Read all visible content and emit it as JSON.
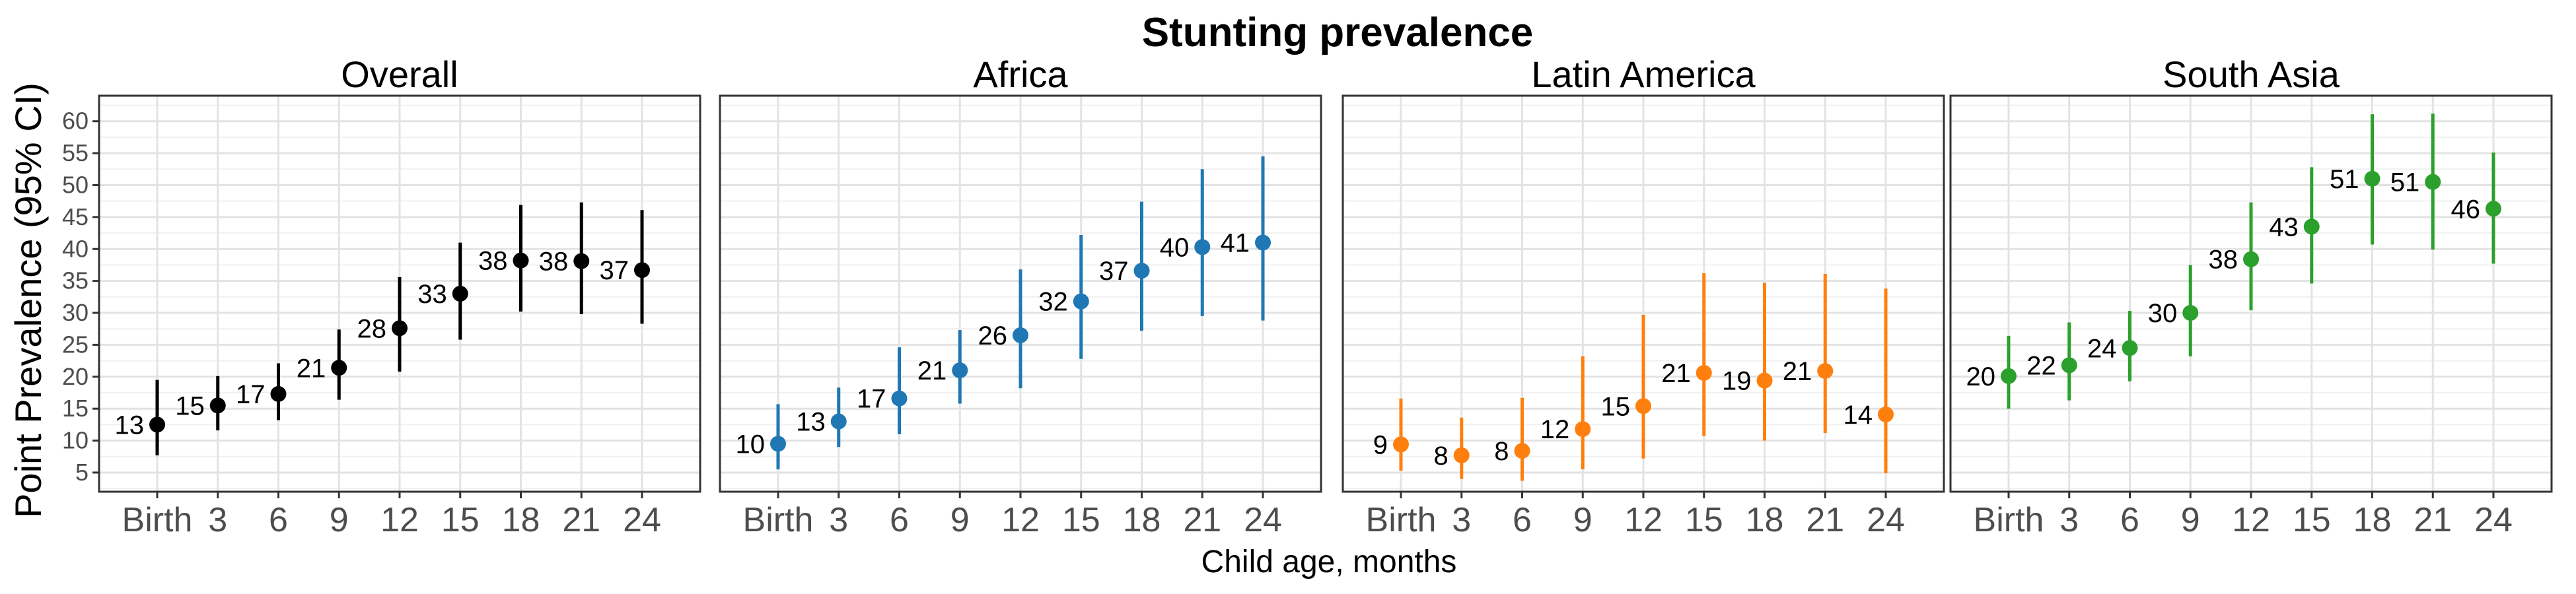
{
  "chart_data": {
    "type": "scatter",
    "title": "Stunting prevalence",
    "xlabel": "Child age, months",
    "ylabel": "Point Prevalence (95% CI)",
    "categories": [
      "Birth",
      "3",
      "6",
      "9",
      "12",
      "15",
      "18",
      "21",
      "24"
    ],
    "ylim": [
      2,
      64
    ],
    "yticks": [
      5,
      10,
      15,
      20,
      25,
      30,
      35,
      40,
      45,
      50,
      55,
      60
    ],
    "grid": true,
    "panels": [
      {
        "name": "Overall",
        "color": "#000000",
        "values": [
          12.5,
          15.5,
          17.3,
          21.4,
          27.6,
          33.0,
          38.2,
          38.1,
          36.7
        ],
        "ci_low": [
          7.7,
          11.6,
          13.2,
          16.4,
          20.8,
          25.8,
          30.2,
          29.8,
          28.3
        ],
        "ci_high": [
          19.5,
          20.1,
          22.1,
          27.4,
          35.6,
          41.0,
          46.9,
          47.3,
          46.1
        ],
        "labels": [
          "13",
          "15",
          "17",
          "21",
          "28",
          "33",
          "38",
          "38",
          "37"
        ]
      },
      {
        "name": "Africa",
        "color": "#1f77b4",
        "values": [
          9.5,
          13.0,
          16.6,
          21.0,
          26.5,
          31.8,
          36.6,
          40.3,
          41.0
        ],
        "ci_low": [
          5.5,
          9.0,
          11.0,
          15.8,
          18.2,
          22.8,
          27.2,
          29.5,
          28.8
        ],
        "ci_high": [
          15.7,
          18.3,
          24.6,
          27.3,
          36.8,
          42.2,
          47.4,
          52.5,
          54.5
        ],
        "labels": [
          "10",
          "13",
          "17",
          "21",
          "26",
          "32",
          "37",
          "40",
          "41"
        ]
      },
      {
        "name": "Latin America",
        "color": "#ff7f0e",
        "values": [
          9.4,
          7.7,
          8.4,
          11.8,
          15.4,
          20.6,
          19.4,
          20.9,
          14.1
        ],
        "ci_low": [
          5.3,
          4.0,
          3.7,
          5.5,
          7.2,
          10.7,
          10.0,
          11.2,
          4.9
        ],
        "ci_high": [
          16.6,
          13.6,
          16.7,
          23.2,
          29.7,
          36.2,
          34.7,
          36.1,
          33.8
        ],
        "labels": [
          "9",
          "8",
          "8",
          "12",
          "15",
          "21",
          "19",
          "21",
          "14"
        ]
      },
      {
        "name": "South Asia",
        "color": "#2ca02c",
        "values": [
          20.1,
          21.8,
          24.5,
          30.0,
          38.4,
          43.5,
          51.0,
          50.5,
          46.3
        ],
        "ci_low": [
          15.0,
          16.3,
          19.3,
          23.2,
          30.4,
          34.6,
          40.7,
          39.9,
          37.7
        ],
        "ci_high": [
          26.4,
          28.5,
          30.3,
          37.5,
          47.3,
          52.8,
          61.1,
          61.2,
          55.1
        ],
        "labels": [
          "20",
          "22",
          "24",
          "30",
          "38",
          "43",
          "51",
          "51",
          "46"
        ]
      }
    ]
  }
}
